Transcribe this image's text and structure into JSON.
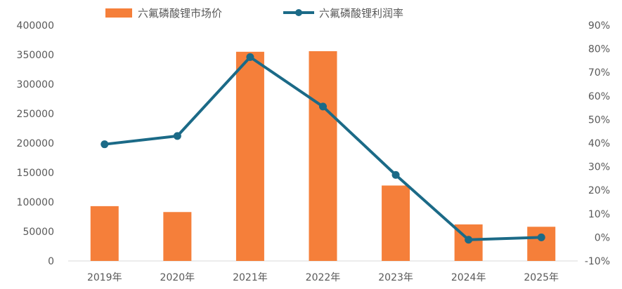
{
  "chart_data": {
    "type": "bar+line",
    "categories": [
      "2019年",
      "2020年",
      "2021年",
      "2022年",
      "2023年",
      "2024年",
      "2025年"
    ],
    "series": [
      {
        "name": "六氟磷酸锂市场价",
        "type": "bar",
        "axis": "left",
        "color": "#F57F3A",
        "values": [
          93000,
          83000,
          355000,
          356000,
          128000,
          62000,
          58000
        ]
      },
      {
        "name": "六氟磷酸锂利润率",
        "type": "line",
        "axis": "right",
        "color": "#1B6A87",
        "values": [
          39.5,
          43,
          76.5,
          55.5,
          26.5,
          -1,
          0
        ]
      }
    ],
    "y_left": {
      "min": 0,
      "max": 400000,
      "ticks": [
        0,
        50000,
        100000,
        150000,
        200000,
        250000,
        300000,
        350000,
        400000
      ],
      "tick_labels": [
        "0",
        "50000",
        "100000",
        "150000",
        "200000",
        "250000",
        "300000",
        "350000",
        "400000"
      ]
    },
    "y_right": {
      "min": -10,
      "max": 90,
      "unit": "%",
      "ticks": [
        -10,
        0,
        10,
        20,
        30,
        40,
        50,
        60,
        70,
        80,
        90
      ],
      "tick_labels": [
        "-10%",
        "0%",
        "10%",
        "20%",
        "30%",
        "40%",
        "50%",
        "60%",
        "70%",
        "80%",
        "90%"
      ]
    },
    "grid": false,
    "legend_position": "top-left"
  }
}
